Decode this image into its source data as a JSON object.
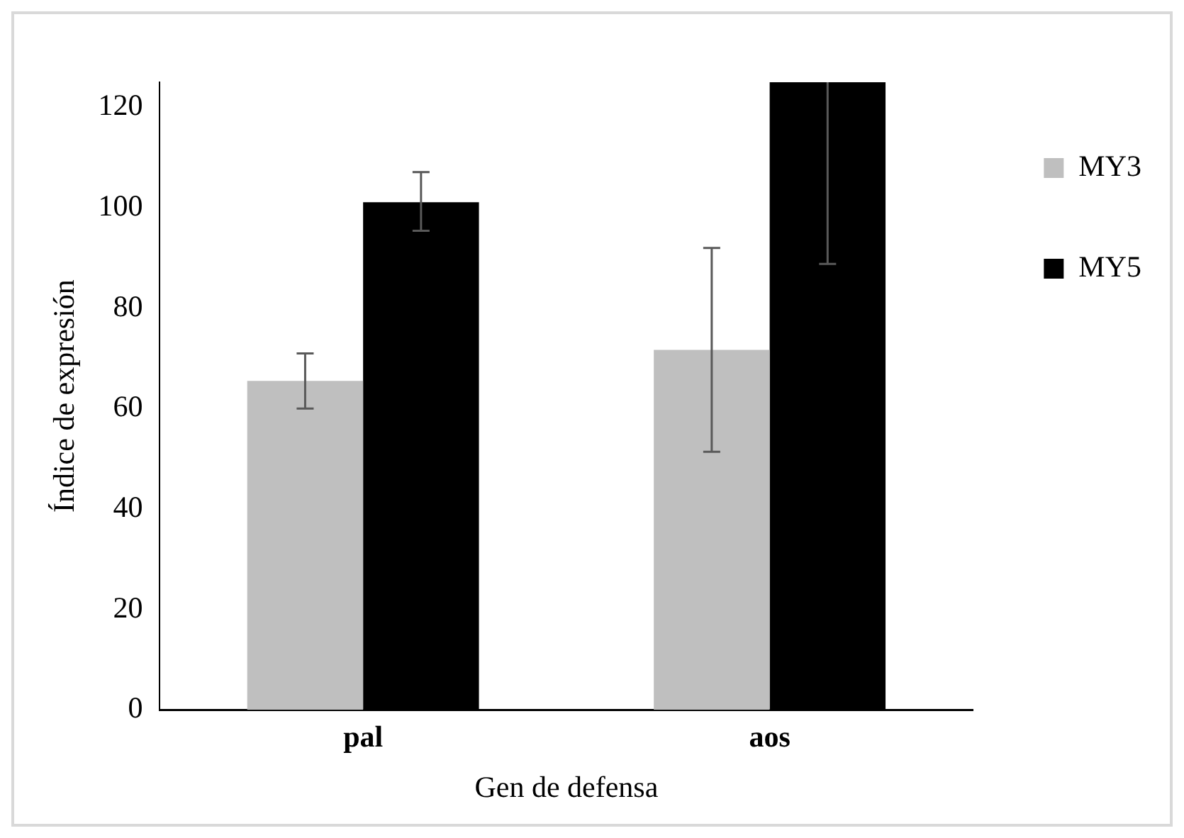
{
  "chart_data": {
    "type": "bar",
    "xlabel": "Gen de defensa",
    "ylabel": "Índice de expresión",
    "categories": [
      "pal",
      "aos"
    ],
    "series": [
      {
        "name": "MY3",
        "color": "#bfbfbf",
        "values": [
          65.5,
          71.7
        ],
        "errors": [
          [
            60,
            71
          ],
          [
            51.4,
            92
          ]
        ]
      },
      {
        "name": "MY5",
        "color": "#000000",
        "values": [
          101.1,
          125
        ],
        "errors": [
          [
            95.4,
            107.1
          ],
          [
            88.8,
            125
          ]
        ]
      }
    ],
    "ylim": [
      0,
      125
    ],
    "yticks": [
      0,
      20,
      40,
      60,
      80,
      100,
      120
    ],
    "grid": false,
    "legend": "right"
  }
}
